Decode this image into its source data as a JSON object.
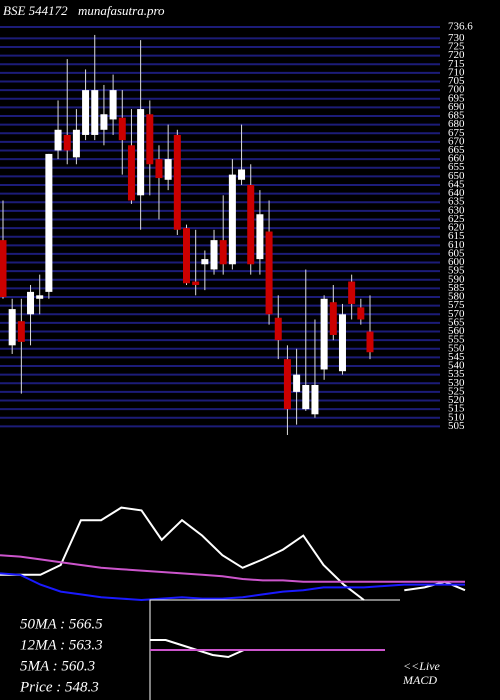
{
  "chart_data": [
    {
      "type": "candlestick",
      "title": "BSE 544172",
      "subtitle": "munafasutra.pro",
      "open": [
        613,
        552,
        566,
        570,
        579,
        583,
        665,
        674,
        661,
        674,
        674,
        677,
        683,
        684,
        668,
        639,
        686,
        660,
        648,
        674,
        620,
        589,
        599,
        596,
        613,
        599,
        648,
        645,
        602,
        618,
        568,
        544,
        525,
        515,
        512,
        538,
        577,
        537,
        589,
        574,
        560
      ],
      "high": [
        636,
        579,
        579,
        587,
        593,
        663,
        694,
        718,
        689,
        712,
        732,
        703,
        709,
        700,
        689,
        729,
        694,
        668,
        680,
        677,
        622,
        619,
        607,
        619,
        639,
        660,
        680,
        657,
        642,
        636,
        581,
        552,
        550,
        596,
        567,
        581,
        587,
        576,
        593,
        579,
        581
      ],
      "low": [
        579,
        547,
        524,
        552,
        570,
        579,
        660,
        657,
        657,
        671,
        671,
        668,
        674,
        651,
        634,
        619,
        639,
        625,
        642,
        616,
        587,
        581,
        584,
        593,
        593,
        596,
        645,
        593,
        593,
        564,
        544,
        500,
        506,
        514,
        510,
        532,
        555,
        535,
        567,
        564,
        544
      ],
      "close": [
        580,
        573,
        554,
        583,
        581,
        663,
        677,
        665,
        677,
        700,
        700,
        686,
        700,
        671,
        636,
        689,
        657,
        649,
        660,
        619,
        588,
        587,
        602,
        613,
        599,
        651,
        654,
        599,
        628,
        570,
        555,
        515,
        535,
        529,
        529,
        579,
        558,
        570,
        576,
        567,
        548
      ],
      "up_color": "#ffffff",
      "down_color": "#cc0000",
      "grid": true,
      "grid_color": "#1c1c78",
      "ylim": [
        500,
        736.6
      ],
      "yticks": [
        505,
        510,
        515,
        520,
        525,
        530,
        535,
        540,
        545,
        550,
        555,
        560,
        565,
        570,
        575,
        580,
        585,
        590,
        595,
        600,
        605,
        610,
        615,
        620,
        625,
        630,
        635,
        640,
        645,
        650,
        655,
        660,
        665,
        670,
        675,
        680,
        685,
        690,
        695,
        700,
        705,
        710,
        715,
        720,
        725,
        730,
        736.6
      ]
    },
    {
      "type": "line",
      "ylim": [
        0,
        100
      ],
      "series": [
        {
          "color": "#ffffff",
          "values": [
            18,
            18,
            18,
            25,
            57,
            57,
            66,
            64,
            43,
            57,
            46,
            32,
            23,
            29,
            36,
            46,
            25,
            11,
            0,
            null,
            7,
            9,
            13,
            7
          ]
        },
        {
          "color": "#cc55cc",
          "values": [
            32,
            31,
            29,
            27,
            25,
            23,
            22,
            21,
            20,
            19,
            18,
            17,
            15,
            14,
            14,
            13,
            13,
            13,
            13,
            13,
            13,
            13,
            13,
            13
          ]
        },
        {
          "color": "#1a1aff",
          "values": [
            19,
            18,
            11,
            6,
            4,
            2,
            1,
            0,
            1,
            2,
            1,
            1,
            2,
            4,
            6,
            7,
            9,
            9,
            9,
            10,
            11,
            11,
            11,
            11
          ]
        }
      ],
      "annotations": [
        "50MA : 566.5",
        "12MA : 563.3",
        "5MA : 560.3",
        "Price   : 548.3"
      ]
    },
    {
      "type": "line",
      "ylim": [
        0,
        100
      ],
      "series": [
        {
          "color": "#ffffff",
          "values": [
            60,
            60,
            55,
            50,
            45,
            43,
            50,
            50,
            50,
            50,
            50,
            50,
            50,
            50,
            50,
            50
          ]
        },
        {
          "color": "#cc55cc",
          "values": [
            50,
            50,
            50,
            50,
            50,
            50,
            50,
            50,
            50,
            50,
            50,
            50,
            50,
            50,
            50,
            50
          ]
        }
      ],
      "annotations": [
        "<<Live",
        "MACD"
      ]
    }
  ]
}
